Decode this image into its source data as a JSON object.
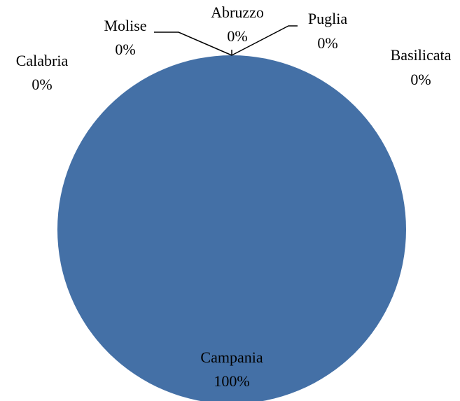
{
  "chart_data": {
    "type": "pie",
    "title": "",
    "slices": [
      {
        "label": "Campania",
        "value": 100,
        "value_label": "100%",
        "color": "#4470a6"
      },
      {
        "label": "Calabria",
        "value": 0,
        "value_label": "0%",
        "color": "#4470a6"
      },
      {
        "label": "Molise",
        "value": 0,
        "value_label": "0%",
        "color": "#4470a6"
      },
      {
        "label": "Abruzzo",
        "value": 0,
        "value_label": "0%",
        "color": "#4470a6"
      },
      {
        "label": "Puglia",
        "value": 0,
        "value_label": "0%",
        "color": "#4470a6"
      },
      {
        "label": "Basilicata",
        "value": 0,
        "value_label": "0%",
        "color": "#4470a6"
      }
    ],
    "legend": "none",
    "data_labels": "outside"
  }
}
